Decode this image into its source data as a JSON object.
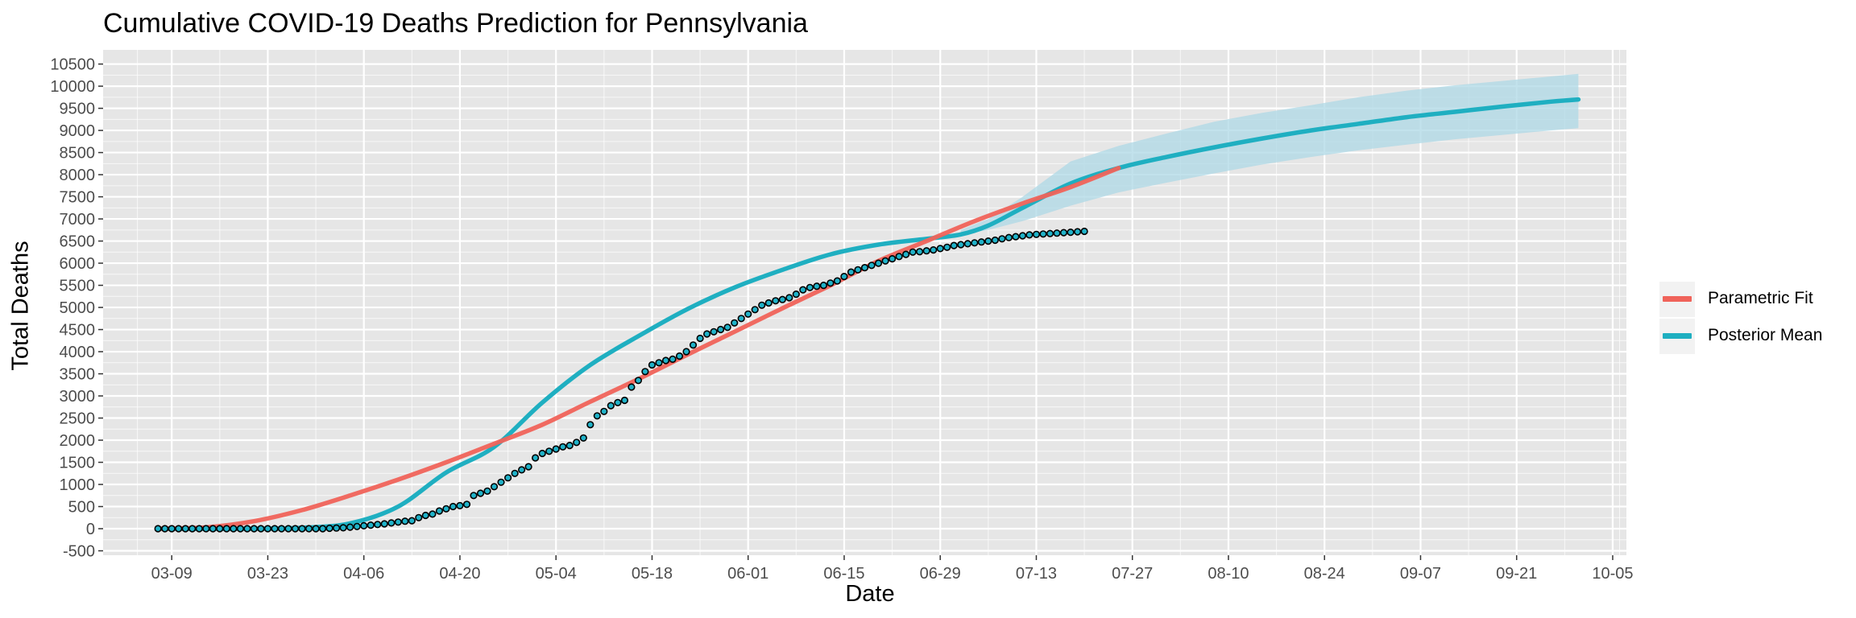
{
  "chart_data": {
    "type": "line",
    "title": "Cumulative COVID-19 Deaths Prediction for Pennsylvania",
    "xlabel": "Date",
    "ylabel": "Total Deaths",
    "x_tick_labels": [
      "03-09",
      "03-23",
      "04-06",
      "04-20",
      "05-04",
      "05-18",
      "06-01",
      "06-15",
      "06-29",
      "07-13",
      "07-27",
      "08-10",
      "08-24",
      "09-07",
      "09-21",
      "10-05"
    ],
    "y_ticks": [
      -500,
      0,
      500,
      1000,
      1500,
      2000,
      2500,
      3000,
      3500,
      4000,
      4500,
      5000,
      5500,
      6000,
      6500,
      7000,
      7500,
      8000,
      8500,
      9000,
      9500,
      10000,
      10500
    ],
    "ylim": [
      -600,
      10820
    ],
    "x_domain": [
      "2020-02-28",
      "2020-10-07"
    ],
    "grid": true,
    "legend_position": "right",
    "legend": [
      {
        "name": "Parametric Fit",
        "color": "#F0635A"
      },
      {
        "name": "Posterior Mean",
        "color": "#1FAFC1"
      }
    ],
    "colors": {
      "panel": "#E6E6E6",
      "gridline": "#FFFFFF",
      "parametric": "#F0635A",
      "posterior": "#1FAFC1",
      "ribbon": "#ADD8E6",
      "point_fill": "#20B2C8",
      "point_stroke": "#000000"
    },
    "series": [
      {
        "name": "Parametric Fit",
        "x": [
          "2020-03-07",
          "2020-03-14",
          "2020-03-21",
          "2020-03-28",
          "2020-04-04",
          "2020-04-11",
          "2020-04-18",
          "2020-04-25",
          "2020-05-02",
          "2020-05-09",
          "2020-05-16",
          "2020-05-23",
          "2020-05-30",
          "2020-06-06",
          "2020-06-13",
          "2020-06-20",
          "2020-06-27",
          "2020-07-04",
          "2020-07-11",
          "2020-07-18",
          "2020-07-25"
        ],
        "y": [
          0,
          30,
          170,
          420,
          750,
          1110,
          1500,
          1920,
          2350,
          2870,
          3380,
          3920,
          4450,
          4980,
          5500,
          6050,
          6500,
          6950,
          7350,
          7720,
          8150
        ]
      },
      {
        "name": "Posterior Mean",
        "x": [
          "2020-03-07",
          "2020-03-21",
          "2020-03-28",
          "2020-04-04",
          "2020-04-11",
          "2020-04-18",
          "2020-04-25",
          "2020-05-02",
          "2020-05-09",
          "2020-05-16",
          "2020-05-23",
          "2020-05-30",
          "2020-06-06",
          "2020-06-13",
          "2020-06-20",
          "2020-06-27",
          "2020-07-02",
          "2020-07-06",
          "2020-07-11",
          "2020-07-18",
          "2020-07-25",
          "2020-08-01",
          "2020-08-08",
          "2020-08-15",
          "2020-08-22",
          "2020-08-29",
          "2020-09-05",
          "2020-09-12",
          "2020-09-19",
          "2020-09-26",
          "2020-09-30"
        ],
        "y": [
          0,
          0,
          20,
          120,
          500,
          1270,
          1850,
          2850,
          3700,
          4350,
          4950,
          5450,
          5850,
          6200,
          6420,
          6550,
          6650,
          6850,
          7250,
          7800,
          8150,
          8400,
          8620,
          8820,
          9000,
          9150,
          9300,
          9420,
          9540,
          9650,
          9700
        ]
      },
      {
        "name": "Posterior Band Lower",
        "x": [
          "2020-07-02",
          "2020-07-06",
          "2020-07-11",
          "2020-07-18",
          "2020-07-25",
          "2020-08-01",
          "2020-08-08",
          "2020-08-15",
          "2020-08-22",
          "2020-08-29",
          "2020-09-05",
          "2020-09-12",
          "2020-09-19",
          "2020-09-26",
          "2020-09-30"
        ],
        "y": [
          6650,
          6750,
          6950,
          7300,
          7600,
          7820,
          8030,
          8230,
          8400,
          8550,
          8680,
          8800,
          8900,
          9000,
          9050
        ]
      },
      {
        "name": "Posterior Band Upper",
        "x": [
          "2020-07-02",
          "2020-07-06",
          "2020-07-11",
          "2020-07-18",
          "2020-07-25",
          "2020-08-01",
          "2020-08-08",
          "2020-08-15",
          "2020-08-22",
          "2020-08-29",
          "2020-09-05",
          "2020-09-12",
          "2020-09-19",
          "2020-09-26",
          "2020-09-30"
        ],
        "y": [
          6750,
          7000,
          7500,
          8300,
          8650,
          8930,
          9200,
          9400,
          9570,
          9750,
          9900,
          10020,
          10120,
          10220,
          10280
        ]
      },
      {
        "name": "Observed",
        "x_start": "2020-03-07",
        "x_step_days": 1,
        "y": [
          0,
          0,
          0,
          0,
          0,
          0,
          0,
          0,
          0,
          0,
          0,
          0,
          0,
          0,
          0,
          0,
          0,
          0,
          0,
          0,
          0,
          0,
          0,
          0,
          0,
          10,
          15,
          20,
          35,
          50,
          65,
          80,
          95,
          110,
          130,
          150,
          170,
          180,
          250,
          300,
          330,
          400,
          450,
          500,
          520,
          550,
          750,
          800,
          850,
          950,
          1050,
          1150,
          1250,
          1330,
          1400,
          1600,
          1700,
          1750,
          1800,
          1850,
          1880,
          1950,
          2050,
          2350,
          2550,
          2650,
          2780,
          2850,
          2900,
          3200,
          3350,
          3550,
          3700,
          3750,
          3800,
          3830,
          3900,
          4000,
          4150,
          4300,
          4400,
          4450,
          4500,
          4550,
          4650,
          4750,
          4850,
          4950,
          5050,
          5100,
          5150,
          5180,
          5220,
          5300,
          5400,
          5450,
          5480,
          5500,
          5550,
          5600,
          5700,
          5800,
          5850,
          5900,
          5950,
          6000,
          6050,
          6100,
          6150,
          6200,
          6250,
          6260,
          6280,
          6300,
          6330,
          6360,
          6400,
          6420,
          6440,
          6460,
          6480,
          6500,
          6520,
          6550,
          6580,
          6600,
          6620,
          6640,
          6650,
          6660,
          6670,
          6680,
          6690,
          6700,
          6710,
          6720
        ]
      }
    ]
  }
}
